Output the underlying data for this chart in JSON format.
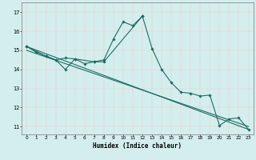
{
  "title": "",
  "xlabel": "Humidex (Indice chaleur)",
  "bg_color": "#d4eeed",
  "grid_color": "#b8dbd8",
  "line_color": "#1a6e64",
  "xlim": [
    -0.5,
    23.5
  ],
  "ylim": [
    10.6,
    17.5
  ],
  "xticks": [
    0,
    1,
    2,
    3,
    4,
    5,
    6,
    7,
    8,
    9,
    10,
    11,
    12,
    13,
    14,
    15,
    16,
    17,
    18,
    19,
    20,
    21,
    22,
    23
  ],
  "yticks": [
    11,
    12,
    13,
    14,
    15,
    16,
    17
  ],
  "series": [
    {
      "x": [
        0,
        1,
        2,
        3,
        4,
        5,
        6,
        7,
        8,
        9,
        10,
        11,
        12,
        13,
        14,
        15,
        16,
        17,
        18,
        19,
        20,
        21,
        22,
        23
      ],
      "y": [
        15.2,
        14.9,
        14.7,
        14.5,
        14.0,
        14.55,
        14.3,
        14.4,
        14.5,
        15.6,
        16.5,
        16.3,
        16.8,
        15.1,
        14.0,
        13.3,
        12.8,
        12.75,
        12.6,
        12.65,
        11.05,
        11.4,
        11.45,
        10.85
      ],
      "has_markers": true
    },
    {
      "x": [
        0,
        2,
        3,
        4,
        5,
        7,
        8,
        12
      ],
      "y": [
        15.2,
        14.7,
        14.5,
        14.6,
        14.55,
        14.4,
        14.4,
        16.8
      ],
      "has_markers": true
    },
    {
      "x": [
        0,
        23
      ],
      "y": [
        15.2,
        10.85
      ],
      "has_markers": false
    },
    {
      "x": [
        0,
        23
      ],
      "y": [
        15.0,
        11.0
      ],
      "has_markers": false
    }
  ]
}
